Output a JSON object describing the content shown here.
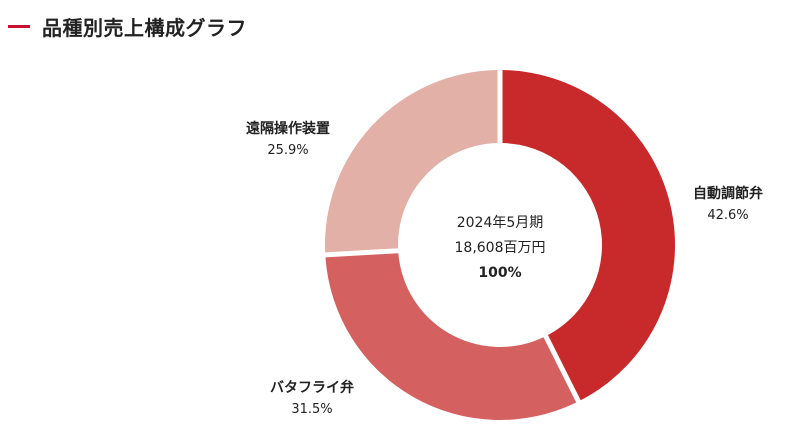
{
  "header": {
    "title": "品種別売上構成グラフ"
  },
  "colors": {
    "accent": "#c8102e"
  },
  "center": {
    "period": "2024年5月期",
    "total": "18,608百万円",
    "percent": "100%"
  },
  "chart_data": {
    "type": "pie",
    "title": "品種別売上構成グラフ",
    "categories": [
      "自動調節弁",
      "バタフライ弁",
      "遠隔操作装置"
    ],
    "values": [
      42.6,
      31.5,
      25.9
    ],
    "value_labels": [
      "42.6%",
      "31.5%",
      "25.9%"
    ],
    "colors": [
      "#c82a2c",
      "#d46160",
      "#e2b0a6"
    ],
    "donut": true,
    "start": "12 o'clock, clockwise"
  }
}
